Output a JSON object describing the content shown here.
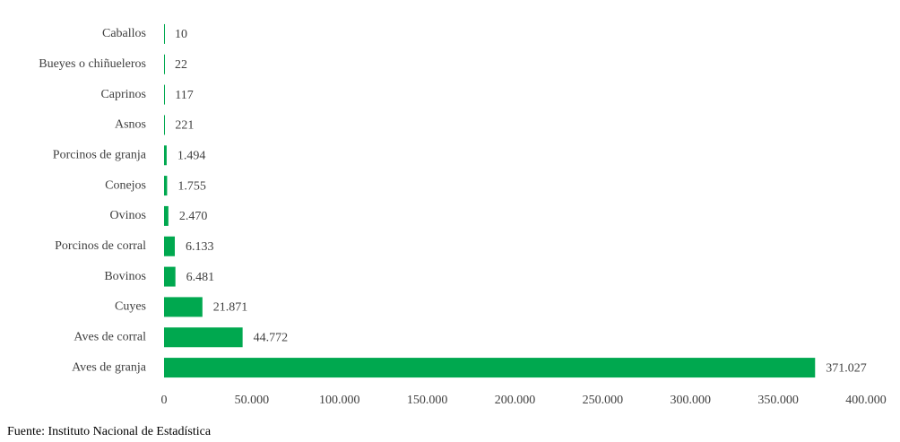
{
  "chart_data": {
    "type": "bar",
    "orientation": "horizontal",
    "categories": [
      "Caballos",
      "Bueyes o chiñueleros",
      "Caprinos",
      "Asnos",
      "Porcinos de granja",
      "Conejos",
      "Ovinos",
      "Porcinos de corral",
      "Bovinos",
      "Cuyes",
      "Aves de corral",
      "Aves de granja"
    ],
    "values": [
      10,
      22,
      117,
      221,
      1494,
      1755,
      2470,
      6133,
      6481,
      21871,
      44772,
      371027
    ],
    "value_labels": [
      "10",
      "22",
      "117",
      "221",
      "1.494",
      "1.755",
      "2.470",
      "6.133",
      "6.481",
      "21.871",
      "44.772",
      "371.027"
    ],
    "color": "#00a84f",
    "xlim": [
      0,
      400000
    ],
    "xticks": [
      0,
      {
        "value": 50000,
        "label": "50.000"
      },
      {
        "value": 100000,
        "label": "100.000"
      },
      {
        "value": 150000,
        "label": "150.000"
      },
      {
        "value": 200000,
        "label": "200.000"
      },
      {
        "value": 250000,
        "label": "250.000"
      },
      {
        "value": 300000,
        "label": "300.000"
      },
      {
        "value": 350000,
        "label": "350.000"
      },
      {
        "value": 400000,
        "label": "400.000"
      }
    ],
    "grid": false,
    "source": "Fuente: Instituto Nacional de Estadística"
  }
}
